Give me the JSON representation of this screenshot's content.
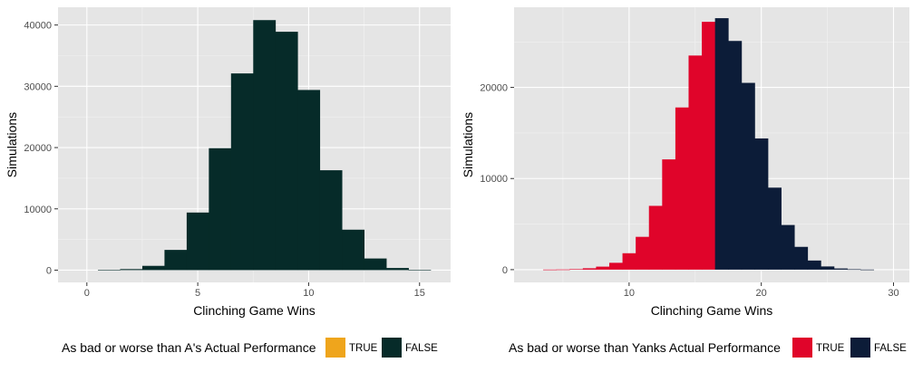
{
  "chart_data": [
    {
      "type": "bar",
      "subtype": "histogram",
      "xlabel": "Clinching Game Wins",
      "ylabel": "Simulations",
      "xlim": [
        -1.3,
        16.4
      ],
      "ylim": [
        -2000,
        42900
      ],
      "x_ticks": [
        0,
        5,
        10,
        15
      ],
      "y_ticks": [
        0,
        10000,
        20000,
        30000,
        40000
      ],
      "bin_width": 1,
      "x": [
        1,
        2,
        3,
        4,
        5,
        6,
        7,
        8,
        9,
        10,
        11,
        12,
        13,
        14,
        15
      ],
      "values": [
        60,
        170,
        700,
        3300,
        9400,
        19900,
        32100,
        40800,
        38900,
        29400,
        16300,
        6600,
        1900,
        350,
        50
      ],
      "fill_true_from": null,
      "legend": {
        "title": "As bad or worse than A's Actual Performance",
        "placement": "bottom",
        "entries": [
          {
            "label": "TRUE",
            "color": "#efa51c"
          },
          {
            "label": "FALSE",
            "color": "#062b29"
          }
        ]
      },
      "colors": {
        "TRUE": "#efa51c",
        "FALSE": "#062b29"
      },
      "grid": true
    },
    {
      "type": "bar",
      "subtype": "histogram",
      "xlabel": "Clinching Game Wins",
      "ylabel": "Simulations",
      "xlim": [
        1.3,
        31.2
      ],
      "ylim": [
        -1400,
        28800
      ],
      "x_ticks": [
        10,
        20,
        30
      ],
      "y_ticks": [
        0,
        10000,
        20000
      ],
      "bin_width": 1,
      "x": [
        4,
        5,
        6,
        7,
        8,
        9,
        10,
        11,
        12,
        13,
        14,
        15,
        16,
        17,
        18,
        19,
        20,
        21,
        22,
        23,
        24,
        25,
        26,
        27,
        28
      ],
      "values": [
        10,
        20,
        60,
        150,
        330,
        750,
        1800,
        3600,
        7000,
        12100,
        17800,
        23500,
        27200,
        27600,
        25100,
        20500,
        14400,
        9000,
        4900,
        2500,
        1000,
        350,
        130,
        40,
        10
      ],
      "true_up_to": 16,
      "legend": {
        "title": "As bad or worse than Yanks Actual Performance",
        "placement": "bottom",
        "entries": [
          {
            "label": "TRUE",
            "color": "#e0042a"
          },
          {
            "label": "FALSE",
            "color": "#0c1c38"
          }
        ]
      },
      "colors": {
        "TRUE": "#e0042a",
        "FALSE": "#0c1c38"
      },
      "grid": true
    }
  ]
}
